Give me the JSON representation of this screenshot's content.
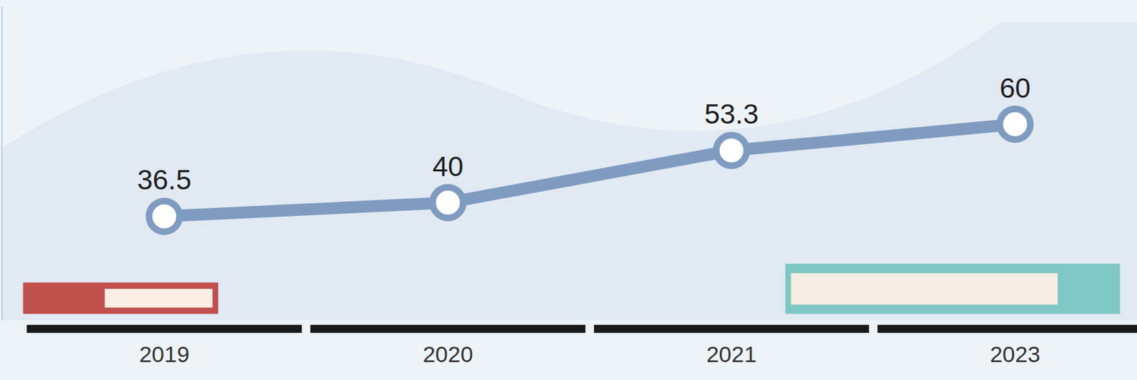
{
  "chart_data": {
    "type": "line",
    "categories": [
      "2019",
      "2020",
      "2021",
      "2023"
    ],
    "values": [
      36.5,
      40,
      53.3,
      60
    ],
    "color": "#7f9cc0",
    "ylim": [
      10,
      90
    ],
    "yticks": [],
    "tick_labels": "x",
    "data_labels": true,
    "marker": "circle",
    "grid": false
  }
}
